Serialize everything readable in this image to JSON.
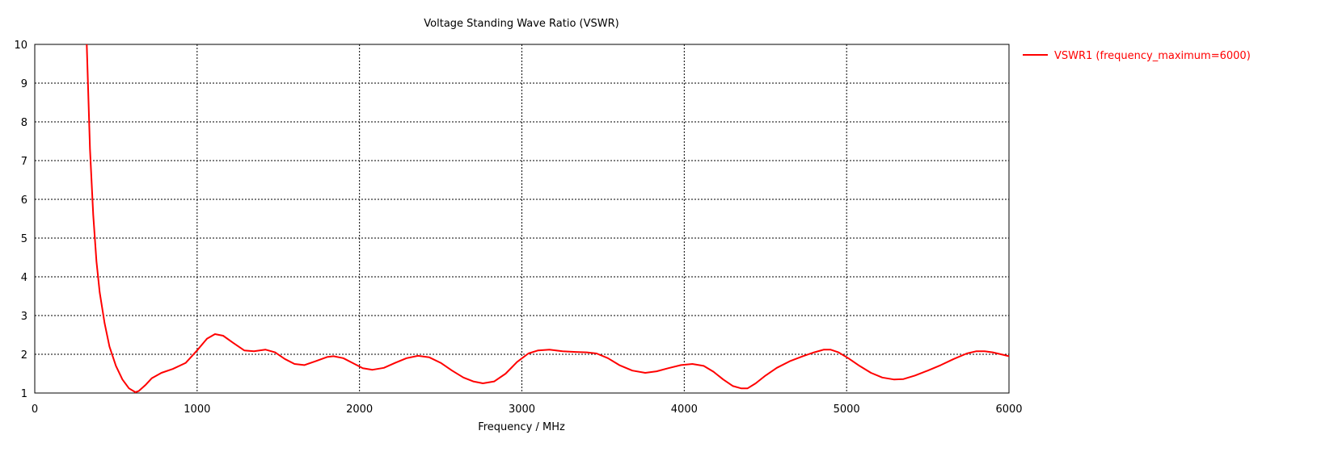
{
  "chart_data": {
    "type": "line",
    "title": "Voltage Standing Wave Ratio (VSWR)",
    "xlabel": "Frequency / MHz",
    "ylabel": "",
    "xlim": [
      0,
      6000
    ],
    "ylim": [
      1,
      10
    ],
    "xticks": [
      0,
      1000,
      2000,
      3000,
      4000,
      5000,
      6000
    ],
    "yticks": [
      1,
      2,
      3,
      4,
      5,
      6,
      7,
      8,
      9,
      10
    ],
    "grid": true,
    "legend_position": "top-right-outside",
    "series": [
      {
        "name": "VSWR1 (frequency_maximum=6000)",
        "color": "#ff0000",
        "x": [
          320,
          340,
          360,
          380,
          400,
          430,
          460,
          500,
          540,
          580,
          620,
          640,
          680,
          720,
          780,
          850,
          930,
          1000,
          1060,
          1110,
          1160,
          1220,
          1290,
          1350,
          1420,
          1480,
          1540,
          1600,
          1660,
          1730,
          1800,
          1840,
          1900,
          1960,
          2020,
          2080,
          2150,
          2220,
          2290,
          2360,
          2430,
          2500,
          2570,
          2640,
          2700,
          2760,
          2830,
          2900,
          2970,
          3040,
          3100,
          3170,
          3250,
          3330,
          3400,
          3460,
          3530,
          3600,
          3680,
          3760,
          3830,
          3900,
          3980,
          4050,
          4120,
          4180,
          4240,
          4300,
          4350,
          4390,
          4440,
          4500,
          4570,
          4650,
          4730,
          4800,
          4860,
          4900,
          4950,
          5010,
          5080,
          5150,
          5220,
          5290,
          5350,
          5420,
          5500,
          5580,
          5660,
          5740,
          5800,
          5850,
          5900,
          5950,
          6000
        ],
        "values": [
          10.0,
          7.3,
          5.6,
          4.4,
          3.6,
          2.8,
          2.2,
          1.7,
          1.35,
          1.12,
          1.02,
          1.05,
          1.2,
          1.38,
          1.52,
          1.62,
          1.78,
          2.1,
          2.4,
          2.52,
          2.48,
          2.3,
          2.1,
          2.08,
          2.12,
          2.05,
          1.88,
          1.75,
          1.72,
          1.82,
          1.93,
          1.95,
          1.9,
          1.77,
          1.64,
          1.6,
          1.65,
          1.78,
          1.9,
          1.96,
          1.92,
          1.78,
          1.58,
          1.4,
          1.3,
          1.25,
          1.3,
          1.5,
          1.8,
          2.02,
          2.1,
          2.12,
          2.08,
          2.06,
          2.05,
          2.02,
          1.9,
          1.72,
          1.58,
          1.52,
          1.56,
          1.64,
          1.72,
          1.75,
          1.7,
          1.55,
          1.35,
          1.18,
          1.12,
          1.12,
          1.25,
          1.45,
          1.65,
          1.82,
          1.95,
          2.05,
          2.12,
          2.12,
          2.05,
          1.9,
          1.7,
          1.52,
          1.4,
          1.35,
          1.36,
          1.45,
          1.58,
          1.72,
          1.88,
          2.02,
          2.08,
          2.08,
          2.05,
          2.0,
          1.95
        ]
      }
    ]
  }
}
